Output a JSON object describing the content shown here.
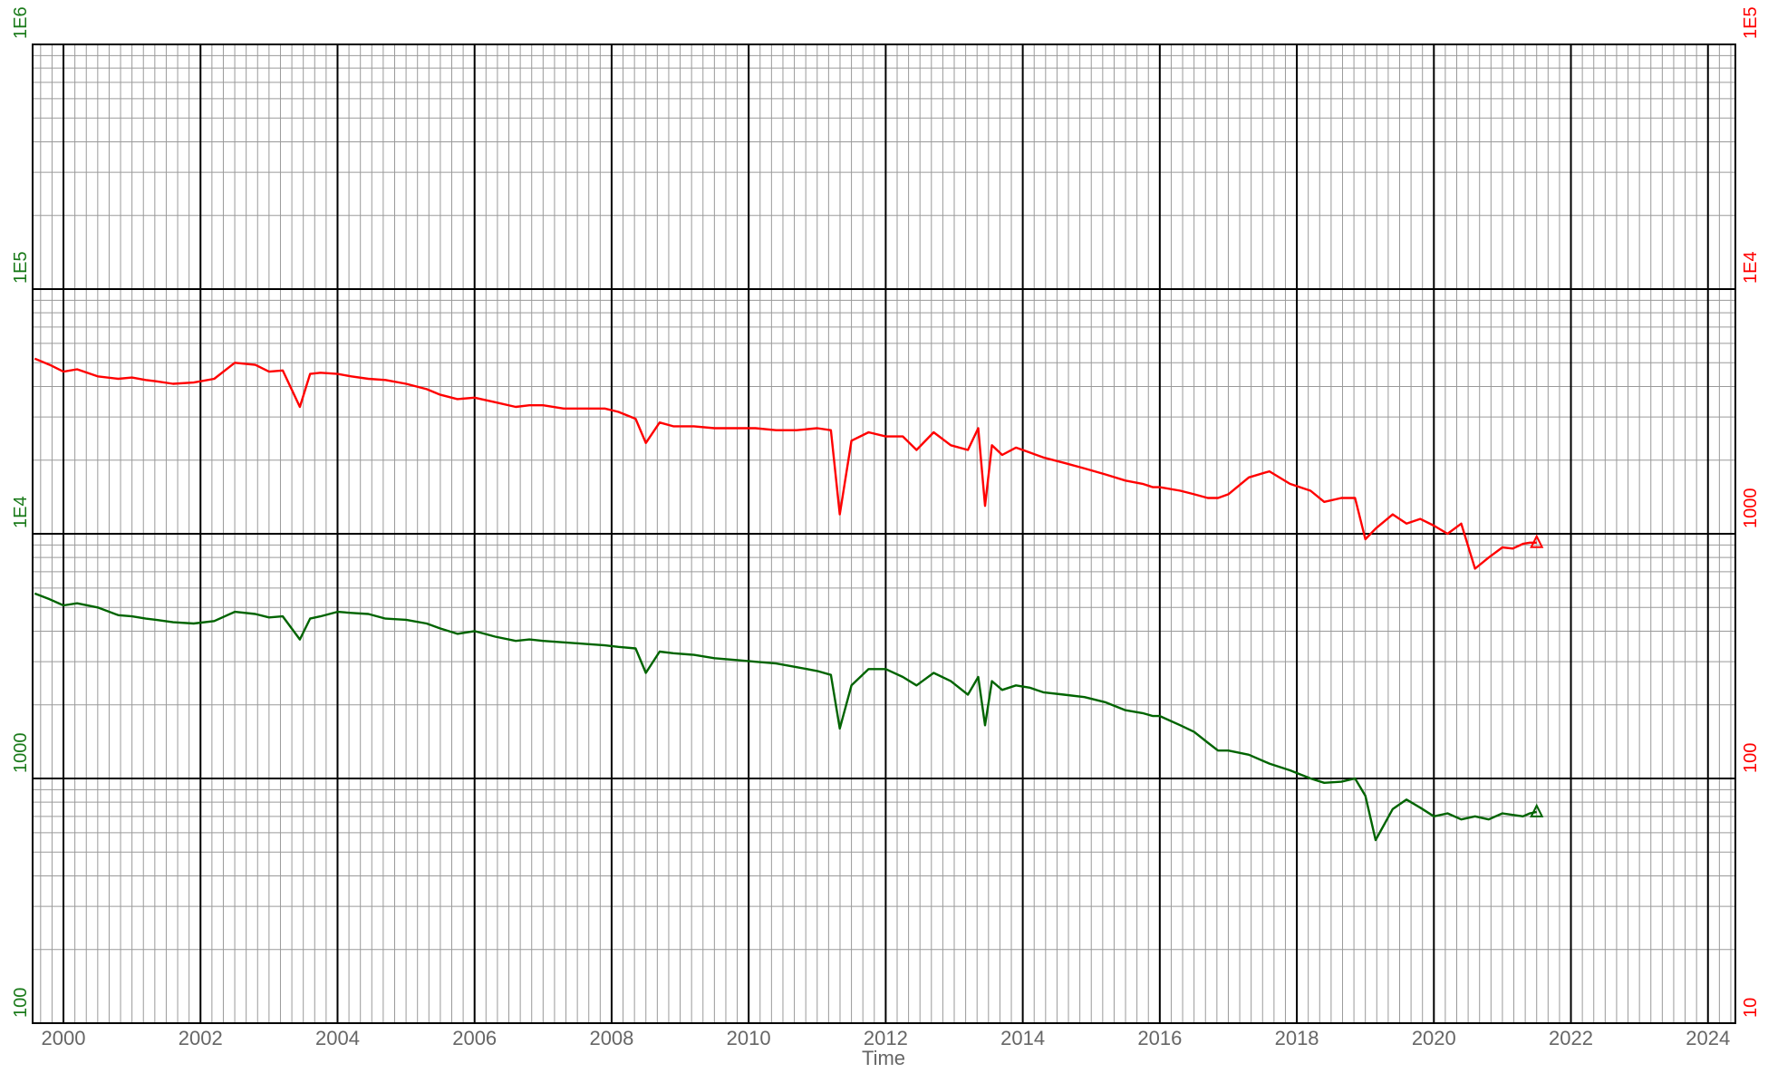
{
  "chart_data": {
    "type": "line",
    "xlabel": "Time",
    "x_ticks": [
      "2000",
      "2002",
      "2004",
      "2006",
      "2008",
      "2010",
      "2012",
      "2014",
      "2016",
      "2018",
      "2020",
      "2022",
      "2024"
    ],
    "xlim": [
      1999.55,
      2024.4
    ],
    "left_axis": {
      "scale": "log",
      "ylim": [
        100,
        1000000
      ],
      "ticks": [
        "100",
        "1000",
        "1E4",
        "1E5",
        "1E6"
      ],
      "color": "#1a7a1a"
    },
    "right_axis": {
      "scale": "log",
      "ylim": [
        10,
        100000
      ],
      "ticks": [
        "10",
        "100",
        "1000",
        "1E4",
        "1E5"
      ],
      "color": "#ff0000"
    },
    "grid": true,
    "series": [
      {
        "axis": "left",
        "color": "#006400",
        "x": [
          1999.58,
          1999.8,
          2000.0,
          2000.2,
          2000.5,
          2000.8,
          2001.0,
          2001.2,
          2001.35,
          2001.6,
          2001.9,
          2002.2,
          2002.5,
          2002.8,
          2003.0,
          2003.2,
          2003.45,
          2003.6,
          2003.75,
          2004.0,
          2004.2,
          2004.45,
          2004.7,
          2005.0,
          2005.3,
          2005.5,
          2005.75,
          2006.0,
          2006.3,
          2006.6,
          2006.8,
          2007.0,
          2007.3,
          2007.6,
          2007.9,
          2008.1,
          2008.35,
          2008.5,
          2008.7,
          2008.9,
          2009.2,
          2009.5,
          2009.8,
          2010.1,
          2010.4,
          2010.7,
          2011.0,
          2011.2,
          2011.33,
          2011.5,
          2011.75,
          2012.0,
          2012.25,
          2012.45,
          2012.7,
          2012.95,
          2013.2,
          2013.35,
          2013.45,
          2013.55,
          2013.7,
          2013.9,
          2014.1,
          2014.3,
          2014.6,
          2014.9,
          2015.2,
          2015.5,
          2015.75,
          2015.9,
          2016.0,
          2016.3,
          2016.5,
          2016.7,
          2016.85,
          2017.0,
          2017.3,
          2017.6,
          2017.9,
          2018.2,
          2018.4,
          2018.65,
          2018.85,
          2019.0,
          2019.15,
          2019.4,
          2019.6,
          2019.8,
          2020.0,
          2020.2,
          2020.4,
          2020.6,
          2020.8,
          2021.0,
          2021.15,
          2021.3,
          2021.4,
          2021.5
        ],
        "y": [
          5700,
          5400,
          5100,
          5200,
          5000,
          4650,
          4600,
          4500,
          4450,
          4350,
          4300,
          4400,
          4800,
          4700,
          4550,
          4600,
          3700,
          4500,
          4600,
          4800,
          4750,
          4700,
          4500,
          4450,
          4300,
          4100,
          3900,
          4000,
          3800,
          3650,
          3700,
          3650,
          3600,
          3550,
          3500,
          3450,
          3400,
          2700,
          3300,
          3250,
          3200,
          3100,
          3050,
          3000,
          2950,
          2850,
          2750,
          2650,
          1600,
          2400,
          2800,
          2800,
          2600,
          2400,
          2700,
          2500,
          2200,
          2600,
          1650,
          2500,
          2300,
          2400,
          2350,
          2250,
          2200,
          2150,
          2050,
          1900,
          1850,
          1800,
          1800,
          1650,
          1550,
          1400,
          1300,
          1300,
          1250,
          1150,
          1080,
          1000,
          960,
          970,
          1000,
          850,
          560,
          750,
          820,
          760,
          700,
          720,
          680,
          700,
          680,
          720,
          710,
          700,
          720,
          730
        ]
      },
      {
        "axis": "right",
        "color": "#ff0000",
        "x": [
          1999.58,
          1999.8,
          2000.0,
          2000.2,
          2000.5,
          2000.8,
          2001.0,
          2001.2,
          2001.35,
          2001.6,
          2001.9,
          2002.2,
          2002.5,
          2002.8,
          2003.0,
          2003.2,
          2003.45,
          2003.6,
          2003.75,
          2004.0,
          2004.2,
          2004.45,
          2004.7,
          2005.0,
          2005.3,
          2005.5,
          2005.75,
          2006.0,
          2006.3,
          2006.6,
          2006.8,
          2007.0,
          2007.3,
          2007.6,
          2007.9,
          2008.1,
          2008.35,
          2008.5,
          2008.7,
          2008.9,
          2009.2,
          2009.5,
          2009.8,
          2010.1,
          2010.4,
          2010.7,
          2011.0,
          2011.2,
          2011.33,
          2011.5,
          2011.75,
          2012.0,
          2012.25,
          2012.45,
          2012.7,
          2012.95,
          2013.2,
          2013.35,
          2013.45,
          2013.55,
          2013.7,
          2013.9,
          2014.1,
          2014.3,
          2014.6,
          2014.9,
          2015.2,
          2015.5,
          2015.75,
          2015.9,
          2016.0,
          2016.3,
          2016.5,
          2016.7,
          2016.85,
          2017.0,
          2017.3,
          2017.6,
          2017.9,
          2018.2,
          2018.4,
          2018.65,
          2018.85,
          2019.0,
          2019.15,
          2019.4,
          2019.6,
          2019.8,
          2020.0,
          2020.2,
          2020.4,
          2020.6,
          2020.8,
          2021.0,
          2021.15,
          2021.3,
          2021.4,
          2021.5
        ],
        "y": [
          5200,
          4900,
          4600,
          4700,
          4400,
          4300,
          4350,
          4250,
          4200,
          4100,
          4150,
          4300,
          5000,
          4900,
          4600,
          4650,
          3300,
          4500,
          4550,
          4500,
          4400,
          4300,
          4250,
          4100,
          3900,
          3700,
          3550,
          3600,
          3450,
          3300,
          3350,
          3350,
          3250,
          3250,
          3250,
          3150,
          2950,
          2350,
          2850,
          2750,
          2750,
          2700,
          2700,
          2700,
          2650,
          2650,
          2700,
          2650,
          1200,
          2400,
          2600,
          2500,
          2500,
          2200,
          2600,
          2300,
          2200,
          2700,
          1300,
          2300,
          2100,
          2250,
          2150,
          2050,
          1950,
          1850,
          1750,
          1650,
          1600,
          1550,
          1550,
          1500,
          1450,
          1400,
          1400,
          1450,
          1700,
          1800,
          1600,
          1500,
          1350,
          1400,
          1400,
          950,
          1050,
          1200,
          1100,
          1150,
          1080,
          1000,
          1100,
          720,
          800,
          880,
          870,
          910,
          920,
          920
        ]
      }
    ]
  }
}
